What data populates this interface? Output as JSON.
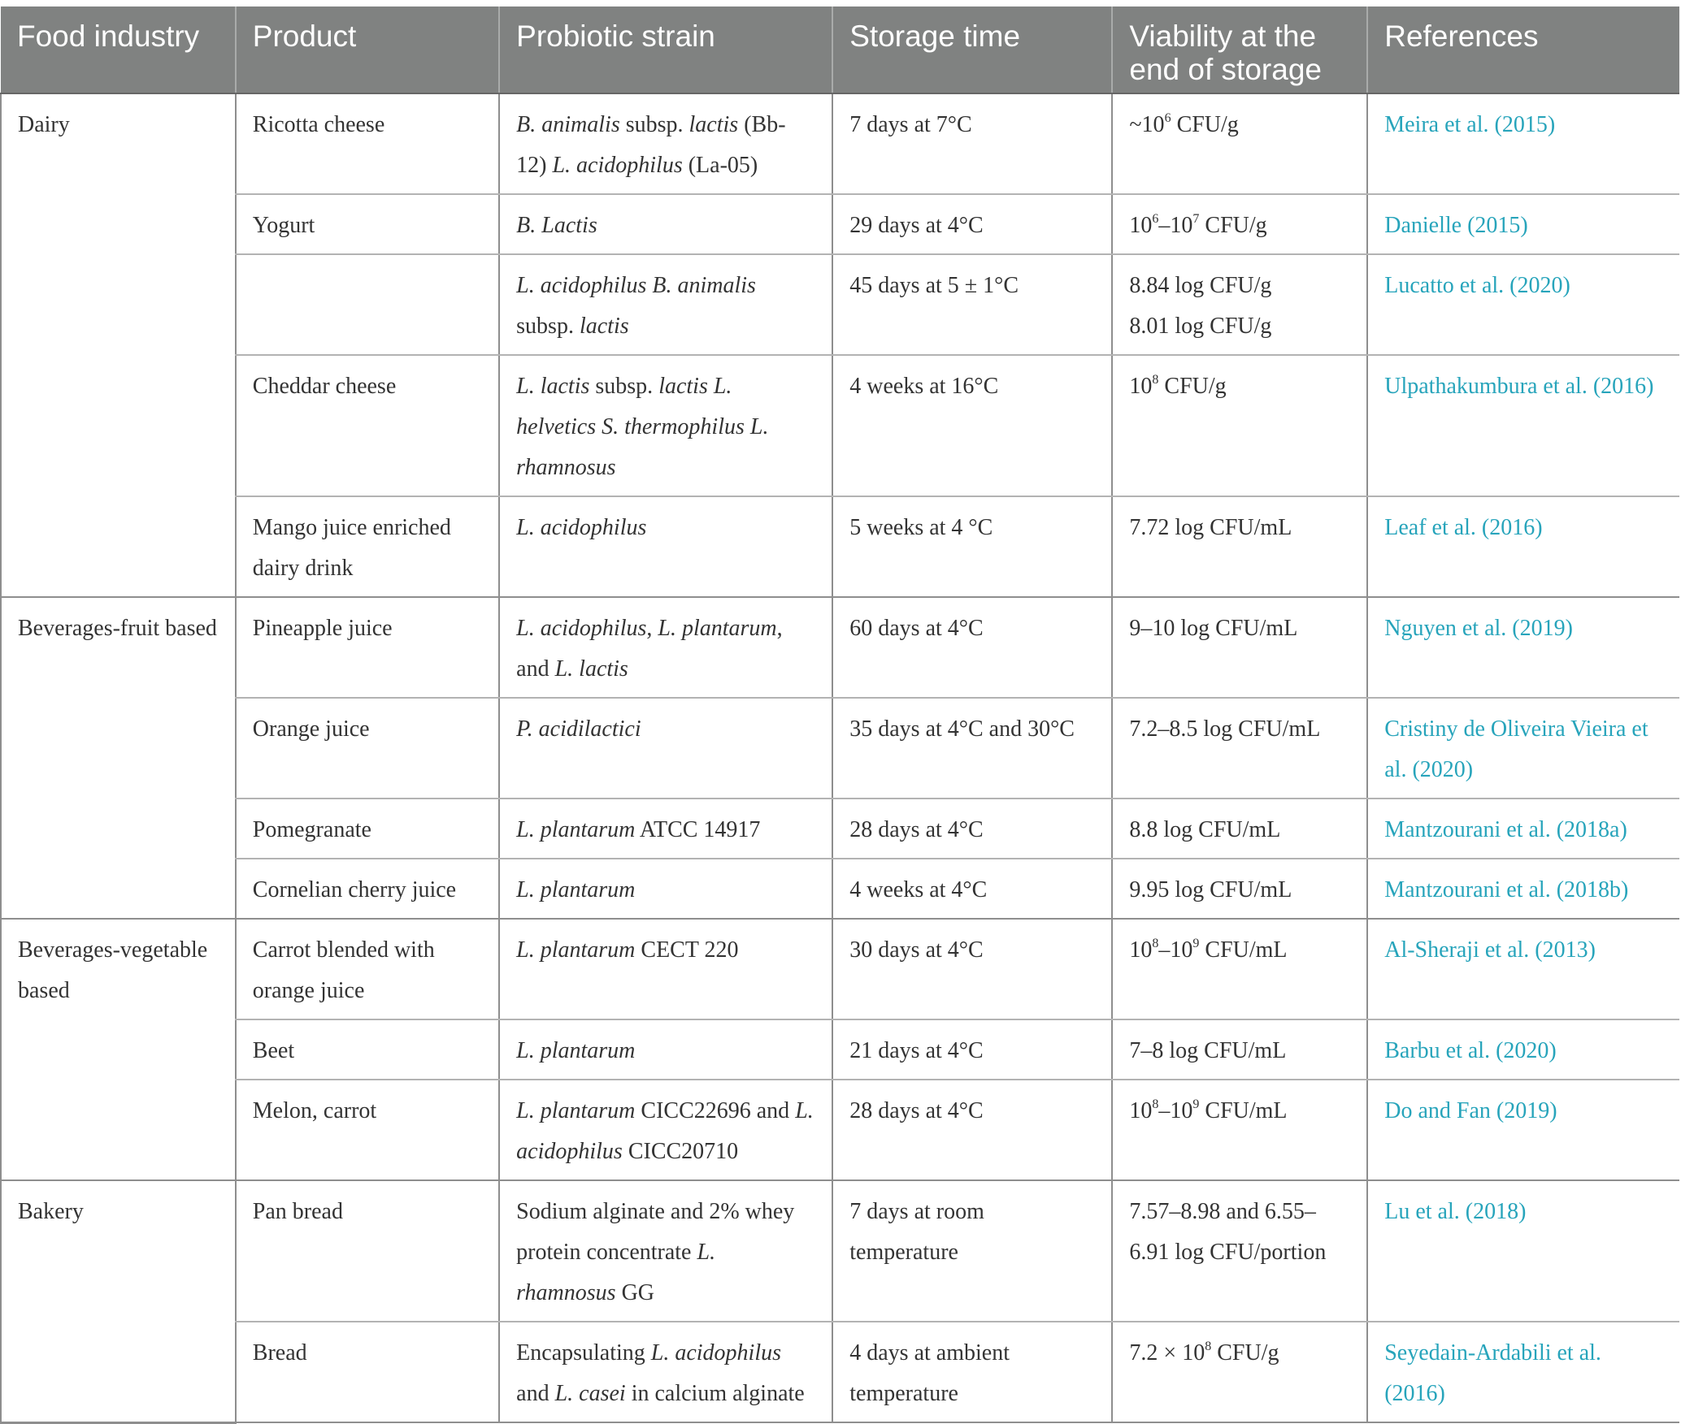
{
  "columns": [
    "Food industry",
    "Product",
    "Probiotic strain",
    "Storage time",
    "Viability at the end of storage",
    "References"
  ],
  "groups": [
    {
      "industry": "Dairy",
      "rows": [
        {
          "product": "Ricotta cheese",
          "strain_html": "<i>B. animalis</i> subsp. <i>lactis</i> (Bb-12) <i>L. acidophilus</i> (La-05)",
          "storage": "7 days at 7°C",
          "viability_html": "~10<sup>6</sup> CFU/g",
          "ref": "Meira et al. (2015)"
        },
        {
          "product": "Yogurt",
          "strain_html": "<i>B. Lactis</i>",
          "storage": "29 days at 4°C",
          "viability_html": "10<sup>6</sup>–10<sup>7</sup> CFU/g",
          "ref": "Danielle (2015)"
        },
        {
          "product": "",
          "strain_html": "<i>L. acidophilus B. animalis</i> subsp. <i>lactis</i>",
          "storage": "45 days at 5 ± 1°C",
          "viability_html": "8.84 log CFU/g<br>8.01 log CFU/g",
          "ref": "Lucatto et al. (2020)"
        },
        {
          "product": "Cheddar cheese",
          "strain_html": "<i>L. lactis</i> subsp. <i>lactis L. helvetics S. thermophilus L. rhamnosus</i>",
          "storage": "4 weeks at 16°C",
          "viability_html": "10<sup>8</sup> CFU/g",
          "ref": "Ulpathakumbura et al. (2016)"
        },
        {
          "product": "Mango juice enriched dairy drink",
          "strain_html": "<i>L. acidophilus</i>",
          "storage": "5 weeks at 4 °C",
          "viability_html": "7.72 log CFU/mL",
          "ref": "Leaf et al. (2016)"
        }
      ]
    },
    {
      "industry": "Beverages-fruit based",
      "rows": [
        {
          "product": "Pineapple juice",
          "strain_html": "<i>L. acidophilus</i>, <i>L. plantarum</i>, and <i>L. lactis</i>",
          "storage": "60 days at 4°C",
          "viability_html": "9–10 log CFU/mL",
          "ref": "Nguyen et al. (2019)"
        },
        {
          "product": "Orange juice",
          "strain_html": "<i>P. acidilactici</i>",
          "storage": "35 days at 4°C and 30°C",
          "viability_html": "7.2–8.5 log CFU/mL",
          "ref": "Cristiny de Oliveira Vieira et al. (2020)"
        },
        {
          "product": "Pomegranate",
          "strain_html": "<i>L. plantarum</i> ATCC 14917",
          "storage": "28 days at 4°C",
          "viability_html": "8.8 log CFU/mL",
          "ref": "Mantzourani et al. (2018a)"
        },
        {
          "product": "Cornelian cherry juice",
          "strain_html": "<i>L. plantarum</i>",
          "storage": "4 weeks at 4°C",
          "viability_html": "9.95 log CFU/mL",
          "ref": "Mantzourani et al. (2018b)"
        }
      ]
    },
    {
      "industry": "Beverages-vegetable based",
      "rows": [
        {
          "product": "Carrot blended with orange juice",
          "strain_html": "<i>L. plantarum</i> CECT 220",
          "storage": "30 days at 4°C",
          "viability_html": "10<sup>8</sup>–10<sup>9</sup> CFU/mL",
          "ref": "Al-Sheraji et al. (2013)"
        },
        {
          "product": "Beet",
          "strain_html": "<i>L. plantarum</i>",
          "storage": "21 days at 4°C",
          "viability_html": "7–8 log CFU/mL",
          "ref": "Barbu et al. (2020)"
        },
        {
          "product": "Melon, carrot",
          "strain_html": "<i>L. plantarum</i> CICC22696 and <i>L. acidophilus</i> CICC20710",
          "storage": "28 days at 4°C",
          "viability_html": "10<sup>8</sup>–10<sup>9</sup> CFU/mL",
          "ref": "Do and Fan (2019)"
        }
      ]
    },
    {
      "industry": "Bakery",
      "rows": [
        {
          "product": "Pan bread",
          "strain_html": "Sodium alginate and 2% whey protein concentrate <i>L. rhamnosus</i> GG",
          "storage": "7 days at room temperature",
          "viability_html": "7.57–8.98 and 6.55–6.91 log CFU/portion",
          "ref": "Lu et al. (2018)"
        },
        {
          "product": "Bread",
          "strain_html": "Encapsulating <i>L. acidophilus</i> and <i>L. casei</i> in calcium alginate",
          "storage": "4 days at ambient temperature",
          "viability_html": "7.2 × 10<sup>8</sup> CFU/g",
          "ref": "Seyedain-Ardabili et al. (2016)"
        }
      ]
    }
  ]
}
